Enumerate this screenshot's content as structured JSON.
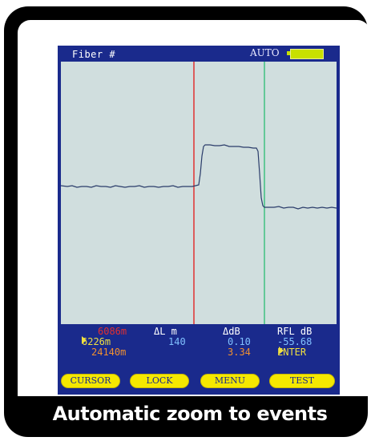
{
  "status_bar": {
    "fiber_label": "Fiber #",
    "mode": "AUTO",
    "battery_color": "#c8e000"
  },
  "trace": {
    "background_color": "#d0dede",
    "trace_color": "#2a3c6a",
    "cursor_a_color": "#e03030",
    "cursor_b_color": "#40c080"
  },
  "readout": {
    "row1_position": "6086m",
    "row2_position": "6226m",
    "row3_position": "24140m",
    "delta_l_header": "ΔL m",
    "delta_l_value": "140",
    "delta_db_header": "ΔdB",
    "delta_db_value1": "0.10",
    "delta_db_value2": "3.34",
    "rfl_header": "RFL dB",
    "rfl_value": "-55.68",
    "enter_label": "ENTER"
  },
  "softkeys": {
    "cursor": "CURSOR",
    "lock": "LOCK",
    "menu": "MENU",
    "test": "TEST"
  },
  "caption": "Automatic zoom to events"
}
